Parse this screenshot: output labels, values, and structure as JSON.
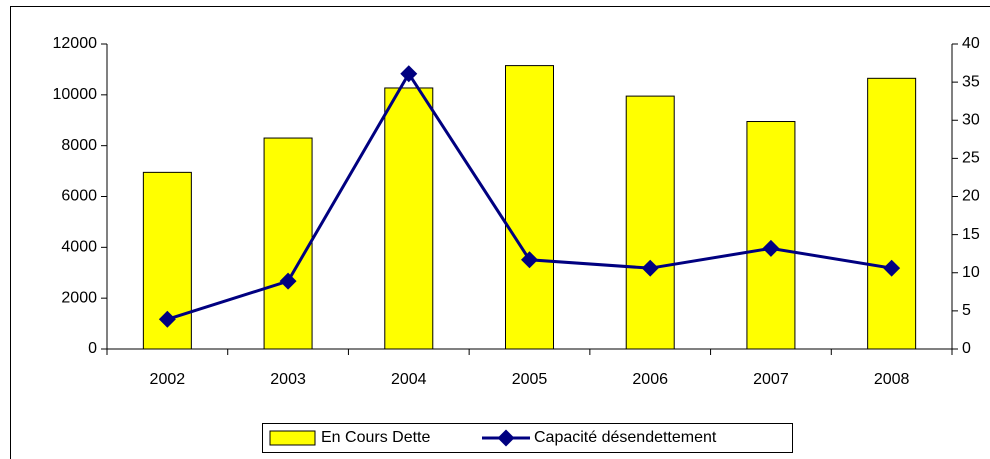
{
  "chart_data": {
    "type": "bar_line",
    "categories": [
      "2002",
      "2003",
      "2004",
      "2005",
      "2006",
      "2007",
      "2008"
    ],
    "series": [
      {
        "name": "En Cours Dette",
        "type": "bar",
        "color": "#ffff00",
        "values": [
          6950,
          8300,
          10270,
          11150,
          9950,
          8950,
          10650
        ]
      },
      {
        "name": "Capacité désendettement",
        "type": "line",
        "axis": "y2",
        "color": "#000080",
        "values": [
          3.9,
          8.9,
          36.1,
          11.7,
          10.6,
          13.2,
          10.6
        ]
      }
    ],
    "ylim": [
      0,
      12000
    ],
    "yticks": [
      0,
      2000,
      4000,
      6000,
      8000,
      10000,
      12000
    ],
    "y2lim": [
      0,
      40
    ],
    "y2ticks": [
      0,
      5,
      10,
      15,
      20,
      25,
      30,
      35,
      40
    ],
    "legend": "bottom"
  }
}
